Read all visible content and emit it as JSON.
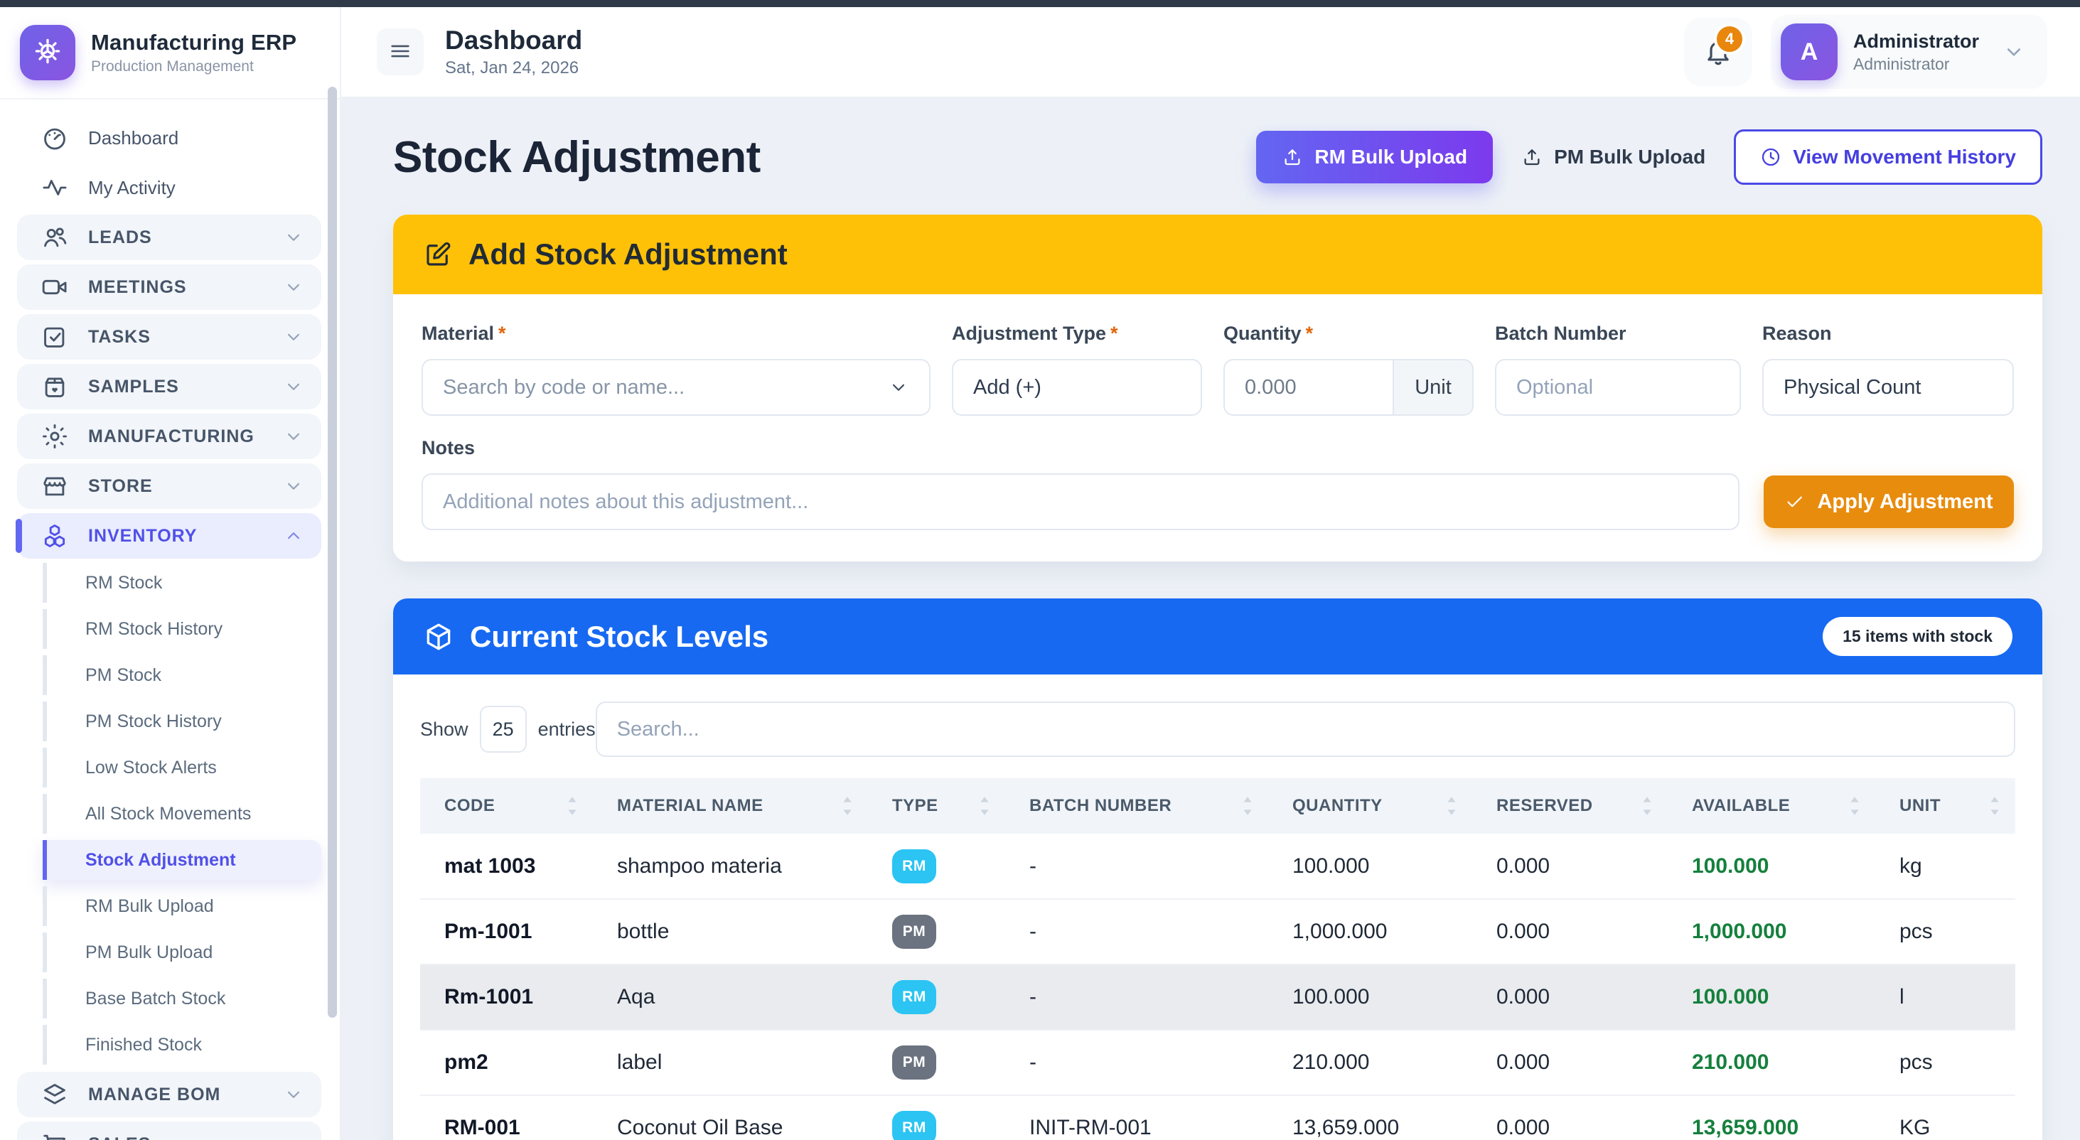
{
  "colors": {
    "topbar": "#303947",
    "accent-indigo": "#5150e8",
    "amber": "#ffc107",
    "blue": "#1769f2",
    "orange": "#e88c0e",
    "green": "#15803d",
    "rm-badge": "#2bc4f3",
    "pm-badge": "#6b7280"
  },
  "sidebar": {
    "brand": {
      "title": "Manufacturing ERP",
      "subtitle": "Production Management",
      "icon": "brand-gear"
    },
    "items_top": [
      {
        "label": "Dashboard",
        "icon": "gauge",
        "kind": "plain"
      },
      {
        "label": "My Activity",
        "icon": "activity",
        "kind": "plain"
      },
      {
        "label": "LEADS",
        "icon": "users",
        "kind": "group",
        "chevron": "chevron-down"
      },
      {
        "label": "MEETINGS",
        "icon": "video",
        "kind": "group",
        "chevron": "chevron-down"
      },
      {
        "label": "TASKS",
        "icon": "task-check",
        "kind": "group",
        "chevron": "chevron-down"
      },
      {
        "label": "SAMPLES",
        "icon": "sample-box",
        "kind": "group",
        "chevron": "chevron-down"
      },
      {
        "label": "MANUFACTURING",
        "icon": "gear",
        "kind": "group",
        "chevron": "chevron-down"
      },
      {
        "label": "STORE",
        "icon": "storefront",
        "kind": "group",
        "chevron": "chevron-down"
      },
      {
        "label": "INVENTORY",
        "icon": "cubes",
        "kind": "group",
        "active": true,
        "chevron": "chevron-up"
      }
    ],
    "inventory_children": [
      {
        "label": "RM Stock"
      },
      {
        "label": "RM Stock History"
      },
      {
        "label": "PM Stock"
      },
      {
        "label": "PM Stock History"
      },
      {
        "label": "Low Stock Alerts"
      },
      {
        "label": "All Stock Movements"
      },
      {
        "label": "Stock Adjustment",
        "active": true
      },
      {
        "label": "RM Bulk Upload"
      },
      {
        "label": "PM Bulk Upload"
      },
      {
        "label": "Base Batch Stock"
      },
      {
        "label": "Finished Stock"
      }
    ],
    "items_bottom": [
      {
        "label": "MANAGE BOM",
        "icon": "layers",
        "kind": "group",
        "chevron": "chevron-down"
      },
      {
        "label": "SALES",
        "icon": "cart",
        "kind": "group",
        "chevron": "chevron-down"
      }
    ]
  },
  "header": {
    "title": "Dashboard",
    "date": "Sat, Jan 24, 2026",
    "notification_count": "4",
    "user": {
      "initial": "A",
      "name": "Administrator",
      "role": "Administrator"
    }
  },
  "page": {
    "title": "Stock Adjustment",
    "actions": {
      "rm_bulk_upload": {
        "label": "RM Bulk Upload",
        "icon": "upload"
      },
      "pm_bulk_upload": {
        "label": "PM Bulk Upload",
        "icon": "upload"
      },
      "view_history": {
        "label": "View Movement History",
        "icon": "clock"
      }
    }
  },
  "adjustment_form": {
    "card_title": "Add Stock Adjustment",
    "card_icon": "edit",
    "required_marker": "*",
    "fields": {
      "material": {
        "label": "Material",
        "placeholder": "Search by code or name..."
      },
      "adjustment_type": {
        "label": "Adjustment Type",
        "value": "Add (+)"
      },
      "quantity": {
        "label": "Quantity",
        "value": "0.000",
        "suffix": "Unit"
      },
      "batch_number": {
        "label": "Batch Number",
        "placeholder": "Optional"
      },
      "reason": {
        "label": "Reason",
        "value": "Physical Count"
      },
      "notes": {
        "label": "Notes",
        "placeholder": "Additional notes about this adjustment..."
      }
    },
    "submit": {
      "label": "Apply Adjustment",
      "icon": "check"
    }
  },
  "stock_table": {
    "card_title": "Current Stock Levels",
    "card_icon": "box3d",
    "badge": "15 items with stock",
    "show_label": "Show",
    "entries_value": "25",
    "entries_label": "entries",
    "search_placeholder": "Search...",
    "columns": [
      {
        "label": "CODE"
      },
      {
        "label": "MATERIAL NAME"
      },
      {
        "label": "TYPE"
      },
      {
        "label": "BATCH NUMBER"
      },
      {
        "label": "QUANTITY"
      },
      {
        "label": "RESERVED"
      },
      {
        "label": "AVAILABLE"
      },
      {
        "label": "UNIT"
      }
    ],
    "rows": [
      {
        "code": "mat 1003",
        "name": "shampoo materia",
        "type": "RM",
        "batch": "-",
        "quantity": "100.000",
        "reserved": "0.000",
        "available": "100.000",
        "unit": "kg"
      },
      {
        "code": "Pm-1001",
        "name": "bottle",
        "type": "PM",
        "batch": "-",
        "quantity": "1,000.000",
        "reserved": "0.000",
        "available": "1,000.000",
        "unit": "pcs"
      },
      {
        "code": "Rm-1001",
        "name": "Aqa",
        "type": "RM",
        "batch": "-",
        "quantity": "100.000",
        "reserved": "0.000",
        "available": "100.000",
        "unit": "l",
        "highlight": true
      },
      {
        "code": "pm2",
        "name": "label",
        "type": "PM",
        "batch": "-",
        "quantity": "210.000",
        "reserved": "0.000",
        "available": "210.000",
        "unit": "pcs"
      },
      {
        "code": "RM-001",
        "name": "Coconut Oil Base",
        "type": "RM",
        "batch": "INIT-RM-001",
        "quantity": "13,659.000",
        "reserved": "0.000",
        "available": "13,659.000",
        "unit": "KG"
      }
    ]
  }
}
